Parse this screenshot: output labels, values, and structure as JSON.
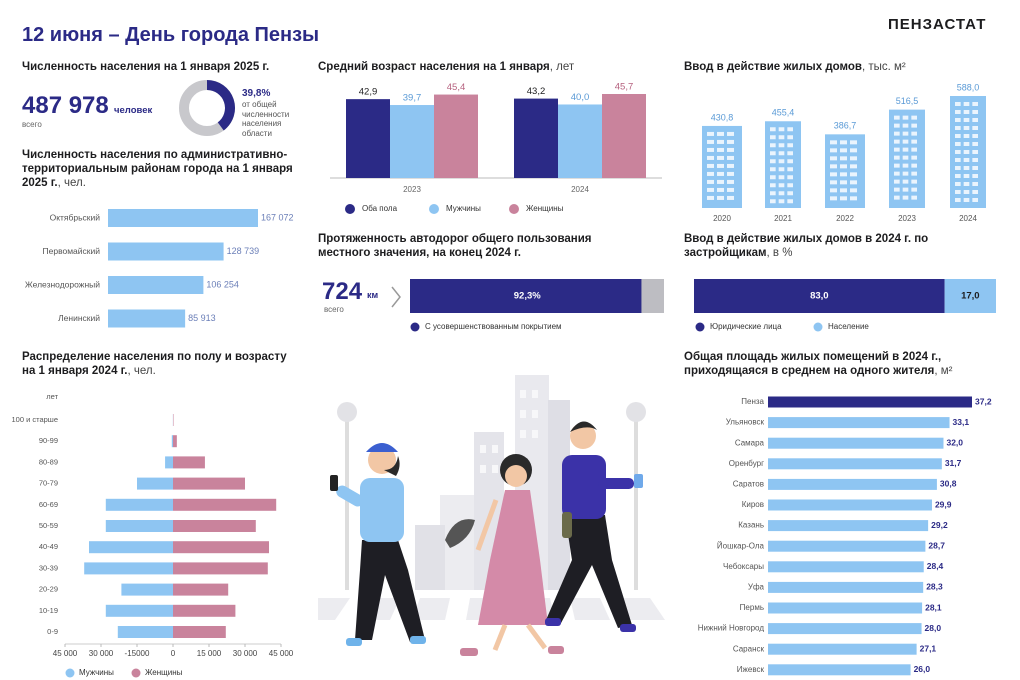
{
  "header": {
    "title": "12 июня – День города Пензы",
    "brand": "ПЕНЗАСТАТ"
  },
  "population": {
    "title": "Численность населения на 1 января 2025 г.",
    "value": "487 978",
    "unit": "человек",
    "note": "всего",
    "share": 39.8,
    "share_label": "39,8%",
    "share_text": "от общей численности населения области"
  },
  "roads": {
    "title": "Протяженность автодорог общего пользования местного значения, на конец 2024 г.",
    "value": "724",
    "unit": "км",
    "note": "всего"
  },
  "chart_data": [
    {
      "type": "hbar",
      "title": "Численность населения по административно-территориальным районам города на 1 января 2025 г.",
      "unit": ", чел.",
      "categories": [
        "Октябрьский",
        "Первомайский",
        "Железнодорожный",
        "Ленинский"
      ],
      "values": [
        167072,
        128739,
        106254,
        85913
      ],
      "value_labels": [
        "167 072",
        "128 739",
        "106 254",
        "85 913"
      ],
      "colors": [
        "#8ec5f2",
        "#8ec5f2",
        "#8ec5f2",
        "#8ec5f2"
      ]
    },
    {
      "type": "grouped_bar",
      "title": "Средний возраст населения на 1 января",
      "unit": ", лет",
      "categories": [
        "2023",
        "2024"
      ],
      "series": [
        {
          "name": "Оба пола",
          "color": "#2b2a86",
          "values": [
            42.9,
            43.2
          ],
          "value_labels": [
            "42,9",
            "43,2"
          ]
        },
        {
          "name": "Мужчины",
          "color": "#8ec5f2",
          "values": [
            39.7,
            40.0
          ],
          "value_labels": [
            "39,7",
            "40,0"
          ]
        },
        {
          "name": "Женщины",
          "color": "#c9839c",
          "values": [
            45.4,
            45.7
          ],
          "value_labels": [
            "45,4",
            "45,7"
          ]
        }
      ]
    },
    {
      "type": "building_bar",
      "title": "Ввод в действие жилых домов",
      "unit": ", тыс. м²",
      "categories": [
        "2020",
        "2021",
        "2022",
        "2023",
        "2024"
      ],
      "values": [
        430.8,
        455.4,
        386.7,
        516.5,
        588.0
      ],
      "value_labels": [
        "430,8",
        "455,4",
        "386,7",
        "516,5",
        "588,0"
      ],
      "color": "#8ec5f2"
    },
    {
      "type": "bar100",
      "xlim": [
        0,
        100
      ],
      "series": [
        {
          "name": "С усовершенствованным покрытием",
          "color": "#2b2a86",
          "values": [
            92.3
          ],
          "value_labels": [
            "92,3%"
          ]
        }
      ]
    },
    {
      "type": "bar100",
      "title": "Ввод в действие жилых домов в 2024 г. по застройщикам",
      "unit": ", в %",
      "xlim": [
        0,
        100
      ],
      "series": [
        {
          "name": "Юридические лица",
          "color": "#2b2a86",
          "values": [
            83.0
          ],
          "value_labels": [
            "83,0"
          ]
        },
        {
          "name": "Население",
          "color": "#8ec5f2",
          "values": [
            17.0
          ],
          "value_labels": [
            "17,0"
          ]
        }
      ]
    },
    {
      "type": "pyramid",
      "title": "Распределение населения по полу и возрасту на 1 января 2024 г.",
      "unit": ", чел.",
      "y_label": "лет",
      "categories": [
        "100 и старше",
        "90-99",
        "80-89",
        "70-79",
        "60-69",
        "50-59",
        "40-49",
        "30-39",
        "20-29",
        "10-19",
        "0-9"
      ],
      "series": [
        {
          "name": "Мужчины",
          "color": "#8ec5f2",
          "values": [
            50,
            500,
            3300,
            15000,
            28000,
            28000,
            35000,
            37000,
            21500,
            28000,
            23000
          ]
        },
        {
          "name": "Женщины",
          "color": "#c9839c",
          "values": [
            200,
            1600,
            13300,
            30000,
            43000,
            34500,
            40000,
            39500,
            23000,
            26000,
            22000
          ]
        }
      ],
      "xlim": [
        -45000,
        45000
      ],
      "xticks": [
        {
          "value": -45000,
          "label": "45 000"
        },
        {
          "value": -30000,
          "label": "30 000"
        },
        -15000,
        0,
        {
          "value": 15000,
          "label": "15 000"
        },
        {
          "value": 30000,
          "label": "30 000"
        },
        {
          "value": 45000,
          "label": "45 000"
        }
      ]
    },
    {
      "type": "hbar",
      "title": "Общая площадь жилых помещений в 2024 г., приходящаяся в среднем на одного жителя",
      "unit": ", м²",
      "categories": [
        "Пенза",
        "Ульяновск",
        "Самара",
        "Оренбург",
        "Саратов",
        "Киров",
        "Казань",
        "Йошкар-Ола",
        "Чебоксары",
        "Уфа",
        "Пермь",
        "Нижний Новгород",
        "Саранск",
        "Ижевск"
      ],
      "values": [
        37.2,
        33.1,
        32.0,
        31.7,
        30.8,
        29.9,
        29.2,
        28.7,
        28.4,
        28.3,
        28.1,
        28.0,
        27.1,
        26.0
      ],
      "value_labels": [
        "37,2",
        "33,1",
        "32,0",
        "31,7",
        "30,8",
        "29,9",
        "29,2",
        "28,7",
        "28,4",
        "28,3",
        "28,1",
        "28,0",
        "27,1",
        "26,0"
      ],
      "colors": [
        "#2b2a86",
        "#8ec5f2",
        "#8ec5f2",
        "#8ec5f2",
        "#8ec5f2",
        "#8ec5f2",
        "#8ec5f2",
        "#8ec5f2",
        "#8ec5f2",
        "#8ec5f2",
        "#8ec5f2",
        "#8ec5f2",
        "#8ec5f2",
        "#8ec5f2"
      ]
    }
  ]
}
